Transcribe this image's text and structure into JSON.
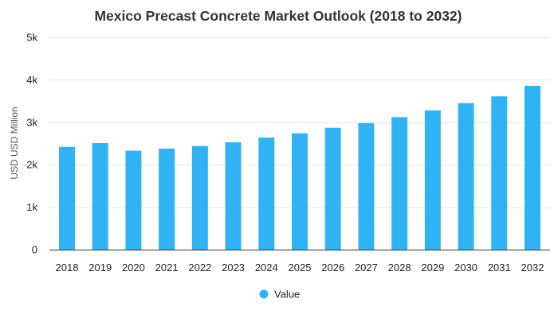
{
  "colors": {
    "bar": "#2fb3f5",
    "background": "#ffffff"
  },
  "chart_data": {
    "type": "bar",
    "title": "Mexico Precast Concrete Market Outlook (2018 to 2032)",
    "xlabel": "",
    "ylabel": "USD USD Million",
    "ylim": [
      0,
      5000
    ],
    "yticks": [
      0,
      1000,
      2000,
      3000,
      4000,
      5000
    ],
    "ytick_labels": [
      "0",
      "1k",
      "2k",
      "3k",
      "4k",
      "5k"
    ],
    "grid": true,
    "legend_position": "bottom-center",
    "categories": [
      "2018",
      "2019",
      "2020",
      "2021",
      "2022",
      "2023",
      "2024",
      "2025",
      "2026",
      "2027",
      "2028",
      "2029",
      "2030",
      "2031",
      "2032"
    ],
    "series": [
      {
        "name": "Value",
        "values": [
          2420,
          2510,
          2330,
          2380,
          2440,
          2530,
          2640,
          2740,
          2870,
          2980,
          3120,
          3280,
          3450,
          3610,
          3860
        ]
      }
    ]
  }
}
